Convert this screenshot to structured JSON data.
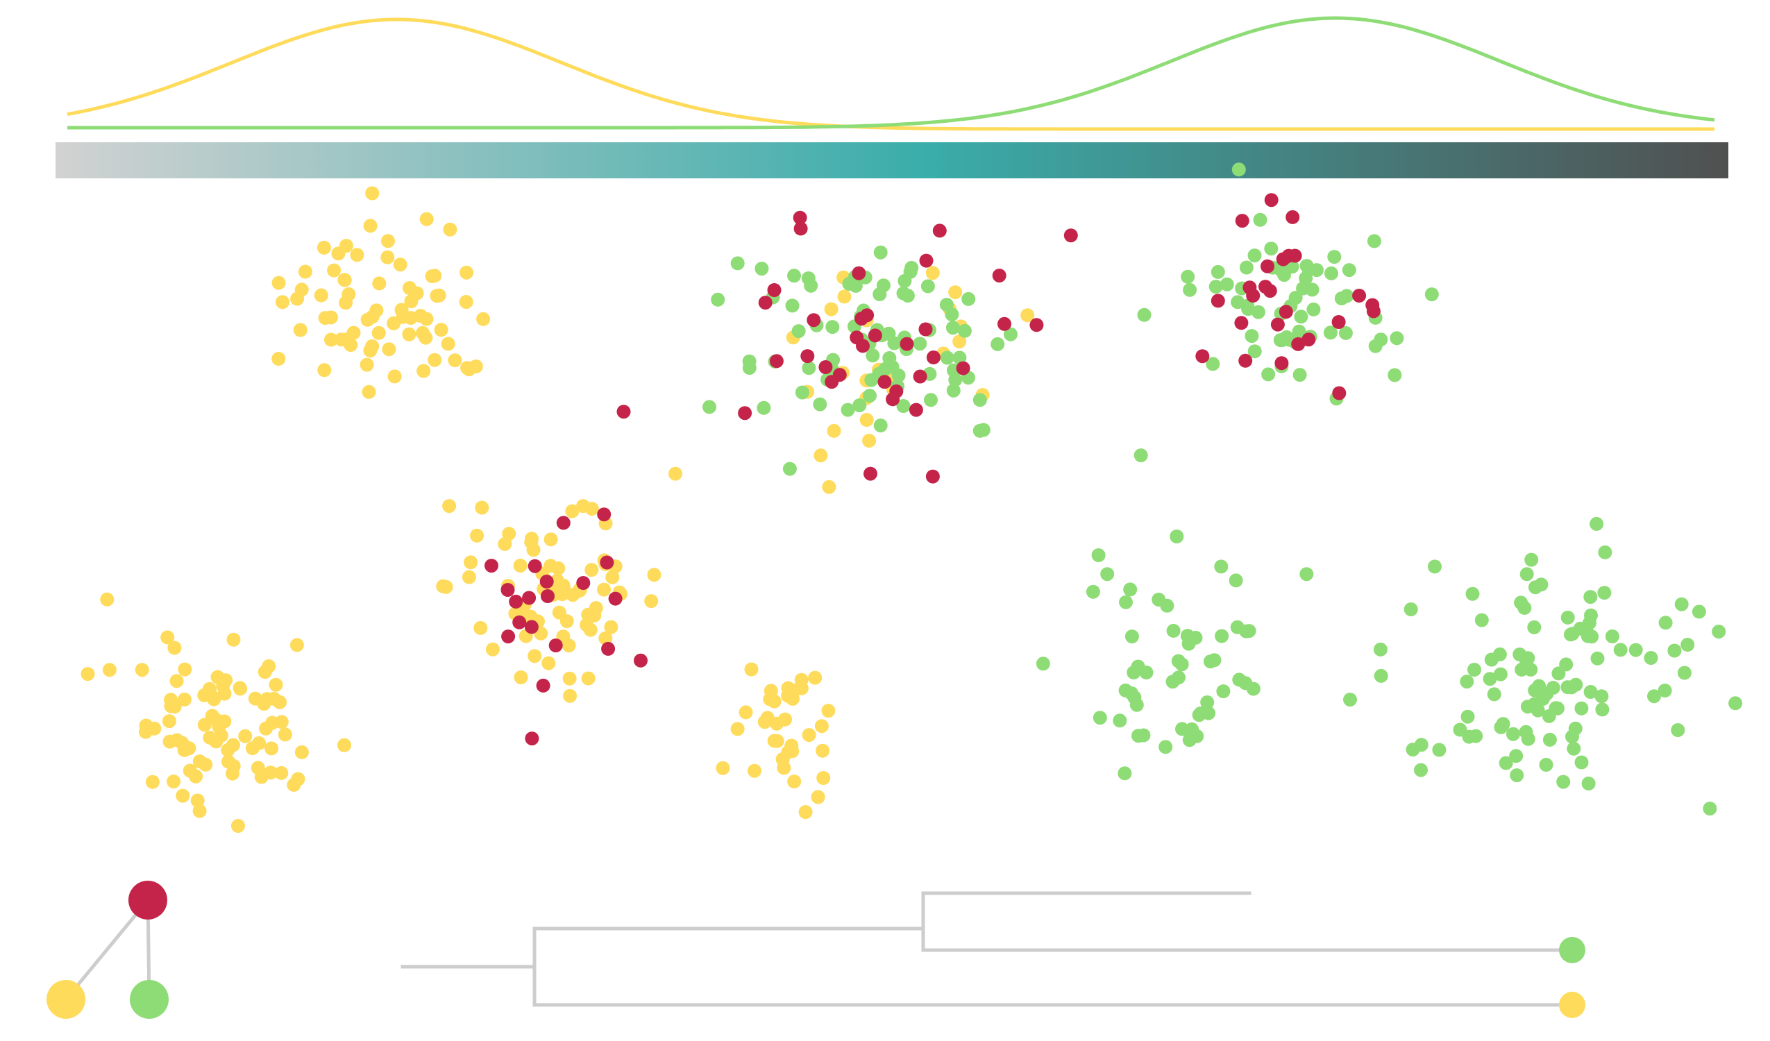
{
  "palette": {
    "yellow": "#FEDB5B",
    "green": "#8EDC76",
    "red": "#C5244A",
    "tree_line": "#CDCDCD",
    "gradient": [
      "#D2D2D2",
      "#3AADAA",
      "#505050"
    ]
  },
  "density_curves": [
    {
      "color_key": "yellow",
      "peak_position": 0.2,
      "spread": 0.1
    },
    {
      "color_key": "green",
      "peak_position": 0.77,
      "spread": 0.1
    }
  ],
  "clusters": [
    {
      "mix": {
        "yellow": 70
      },
      "n": 70,
      "sx": 200,
      "sy": 160
    },
    {
      "mix": {
        "green": 80,
        "yellow": 25,
        "red": 35
      },
      "n": 140,
      "sx": 270,
      "sy": 210
    },
    {
      "mix": {
        "green": 60,
        "red": 25
      },
      "n": 85,
      "sx": 190,
      "sy": 150
    },
    {
      "mix": {
        "yellow": 70,
        "red": 20
      },
      "n": 90,
      "sx": 200,
      "sy": 170
    },
    {
      "mix": {
        "yellow": 80
      },
      "n": 80,
      "sx": 190,
      "sy": 170
    },
    {
      "mix": {
        "yellow": 35
      },
      "n": 35,
      "sx": 90,
      "sy": 120
    },
    {
      "mix": {
        "green": 55
      },
      "n": 55,
      "sx": 210,
      "sy": 190
    },
    {
      "mix": {
        "green": 100
      },
      "n": 100,
      "sx": 300,
      "sy": 250
    }
  ],
  "graph_nodes": [
    {
      "id": "red",
      "color_key": "red"
    },
    {
      "id": "yellow",
      "color_key": "yellow"
    },
    {
      "id": "green",
      "color_key": "green"
    }
  ],
  "graph_edges": [
    {
      "from": "red",
      "to": "yellow"
    },
    {
      "from": "red",
      "to": "green"
    }
  ],
  "tree_leaves": [
    {
      "color_key": "green"
    },
    {
      "color_key": "yellow"
    }
  ]
}
